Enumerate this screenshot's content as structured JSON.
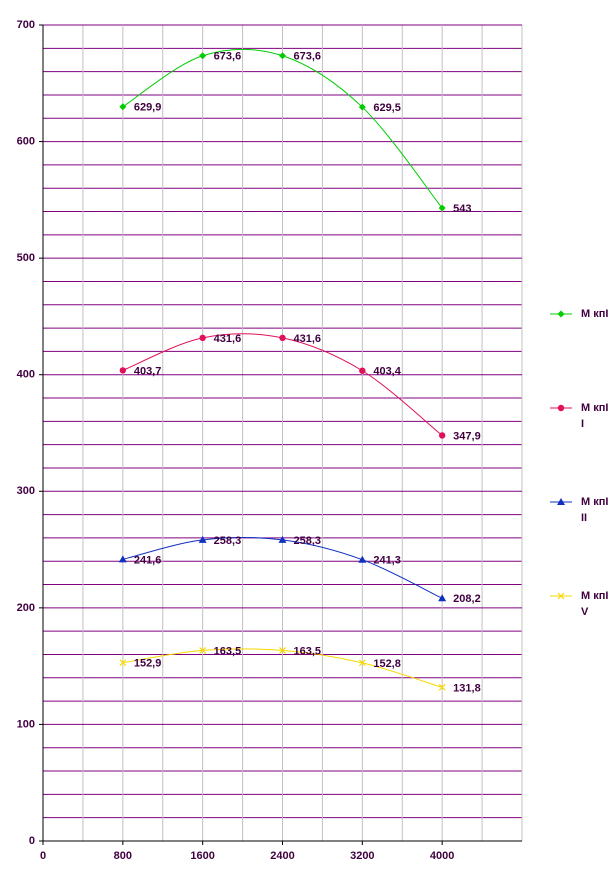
{
  "chart_data": {
    "type": "line",
    "x": [
      800,
      1600,
      2400,
      3200,
      4000
    ],
    "series": [
      {
        "name": "M кпI",
        "color": "#00cc00",
        "marker": "diamond",
        "values": [
          629.9,
          673.6,
          673.6,
          629.5,
          543
        ],
        "value_labels": [
          "629,9",
          "673,6",
          "673,6",
          "629,5",
          "543"
        ]
      },
      {
        "name": "M кпII",
        "color": "#e0105a",
        "marker": "circle",
        "values": [
          403.7,
          431.6,
          431.6,
          403.4,
          347.9
        ],
        "value_labels": [
          "403,7",
          "431,6",
          "431,6",
          "403,4",
          "347,9"
        ]
      },
      {
        "name": "M кпIII",
        "color": "#1030c0",
        "marker": "triangle",
        "values": [
          241.6,
          258.3,
          258.3,
          241.3,
          208.2
        ],
        "value_labels": [
          "241,6",
          "258,3",
          "258,3",
          "241,3",
          "208,2"
        ]
      },
      {
        "name": "M кпIV",
        "color": "#f8d800",
        "marker": "x",
        "values": [
          152.9,
          163.5,
          163.5,
          152.8,
          131.8
        ],
        "value_labels": [
          "152,9",
          "163,5",
          "163,5",
          "152,8",
          "131,8"
        ]
      }
    ],
    "xlim": [
      0,
      4800
    ],
    "xticks": [
      0,
      800,
      1600,
      2400,
      3200,
      4000
    ],
    "ylim": [
      0,
      700
    ],
    "yticks": [
      0,
      100,
      200,
      300,
      400,
      500,
      600,
      700
    ],
    "grid": true,
    "legend": "right"
  }
}
